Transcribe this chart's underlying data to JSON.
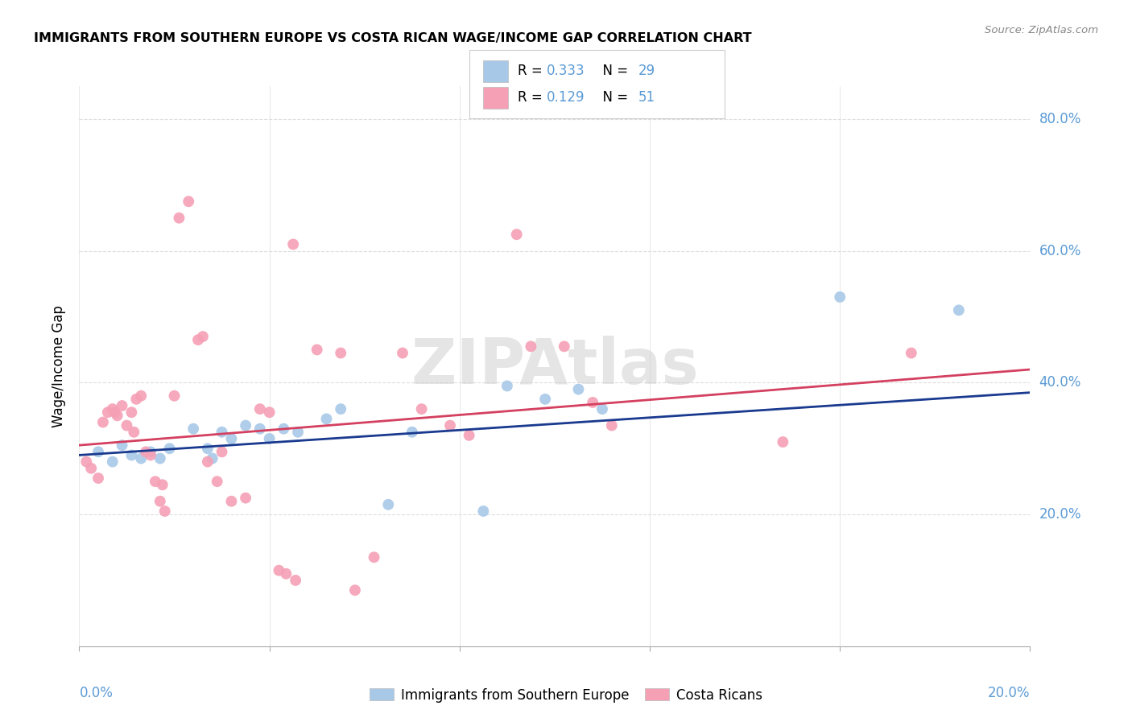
{
  "title": "IMMIGRANTS FROM SOUTHERN EUROPE VS COSTA RICAN WAGE/INCOME GAP CORRELATION CHART",
  "source": "Source: ZipAtlas.com",
  "ylabel": "Wage/Income Gap",
  "legend1_label": "Immigrants from Southern Europe",
  "legend2_label": "Costa Ricans",
  "r1": 0.333,
  "n1": 29,
  "r2": 0.129,
  "n2": 51,
  "blue_color": "#a8c8e8",
  "pink_color": "#f5a0b5",
  "blue_line_color": "#1a3a8f",
  "pink_line_color": "#d44060",
  "blue_points": [
    [
      0.4,
      29.5
    ],
    [
      0.7,
      28.0
    ],
    [
      0.9,
      30.5
    ],
    [
      1.1,
      29.0
    ],
    [
      1.3,
      28.5
    ],
    [
      1.5,
      29.5
    ],
    [
      1.7,
      28.5
    ],
    [
      1.9,
      30.0
    ],
    [
      2.4,
      33.0
    ],
    [
      2.7,
      30.0
    ],
    [
      2.8,
      28.5
    ],
    [
      3.0,
      32.5
    ],
    [
      3.2,
      31.5
    ],
    [
      3.5,
      33.5
    ],
    [
      3.8,
      33.0
    ],
    [
      4.0,
      31.5
    ],
    [
      4.3,
      33.0
    ],
    [
      4.6,
      32.5
    ],
    [
      5.2,
      34.5
    ],
    [
      5.5,
      36.0
    ],
    [
      6.5,
      21.5
    ],
    [
      7.0,
      32.5
    ],
    [
      8.5,
      20.5
    ],
    [
      9.0,
      39.5
    ],
    [
      9.8,
      37.5
    ],
    [
      10.5,
      39.0
    ],
    [
      11.0,
      36.0
    ],
    [
      16.0,
      53.0
    ],
    [
      18.5,
      51.0
    ]
  ],
  "pink_points": [
    [
      0.15,
      28.0
    ],
    [
      0.25,
      27.0
    ],
    [
      0.4,
      25.5
    ],
    [
      0.5,
      34.0
    ],
    [
      0.6,
      35.5
    ],
    [
      0.7,
      36.0
    ],
    [
      0.75,
      35.5
    ],
    [
      0.8,
      35.0
    ],
    [
      0.9,
      36.5
    ],
    [
      1.0,
      33.5
    ],
    [
      1.1,
      35.5
    ],
    [
      1.15,
      32.5
    ],
    [
      1.2,
      37.5
    ],
    [
      1.3,
      38.0
    ],
    [
      1.4,
      29.5
    ],
    [
      1.5,
      29.0
    ],
    [
      1.6,
      25.0
    ],
    [
      1.7,
      22.0
    ],
    [
      1.75,
      24.5
    ],
    [
      1.8,
      20.5
    ],
    [
      2.0,
      38.0
    ],
    [
      2.1,
      65.0
    ],
    [
      2.3,
      67.5
    ],
    [
      2.5,
      46.5
    ],
    [
      2.6,
      47.0
    ],
    [
      2.7,
      28.0
    ],
    [
      2.9,
      25.0
    ],
    [
      3.0,
      29.5
    ],
    [
      3.2,
      22.0
    ],
    [
      3.5,
      22.5
    ],
    [
      3.8,
      36.0
    ],
    [
      4.0,
      35.5
    ],
    [
      4.2,
      11.5
    ],
    [
      4.35,
      11.0
    ],
    [
      4.5,
      61.0
    ],
    [
      4.55,
      10.0
    ],
    [
      5.0,
      45.0
    ],
    [
      5.5,
      44.5
    ],
    [
      5.8,
      8.5
    ],
    [
      6.2,
      13.5
    ],
    [
      6.8,
      44.5
    ],
    [
      7.2,
      36.0
    ],
    [
      7.8,
      33.5
    ],
    [
      8.2,
      32.0
    ],
    [
      9.2,
      62.5
    ],
    [
      9.5,
      45.5
    ],
    [
      10.2,
      45.5
    ],
    [
      10.8,
      37.0
    ],
    [
      11.2,
      33.5
    ],
    [
      14.8,
      31.0
    ],
    [
      17.5,
      44.5
    ]
  ],
  "watermark": "ZIPAtlas",
  "xlim": [
    0,
    20
  ],
  "ylim": [
    0,
    85
  ],
  "blue_line": [
    0.0,
    29.0,
    20.0,
    38.5
  ],
  "pink_line": [
    0.0,
    30.5,
    20.0,
    42.0
  ],
  "background_color": "#ffffff",
  "grid_color": "#dddddd",
  "right_axis_color": "#5b9bd5",
  "title_fontsize": 11.5,
  "axis_label_fontsize": 12,
  "scatter_size": 100
}
